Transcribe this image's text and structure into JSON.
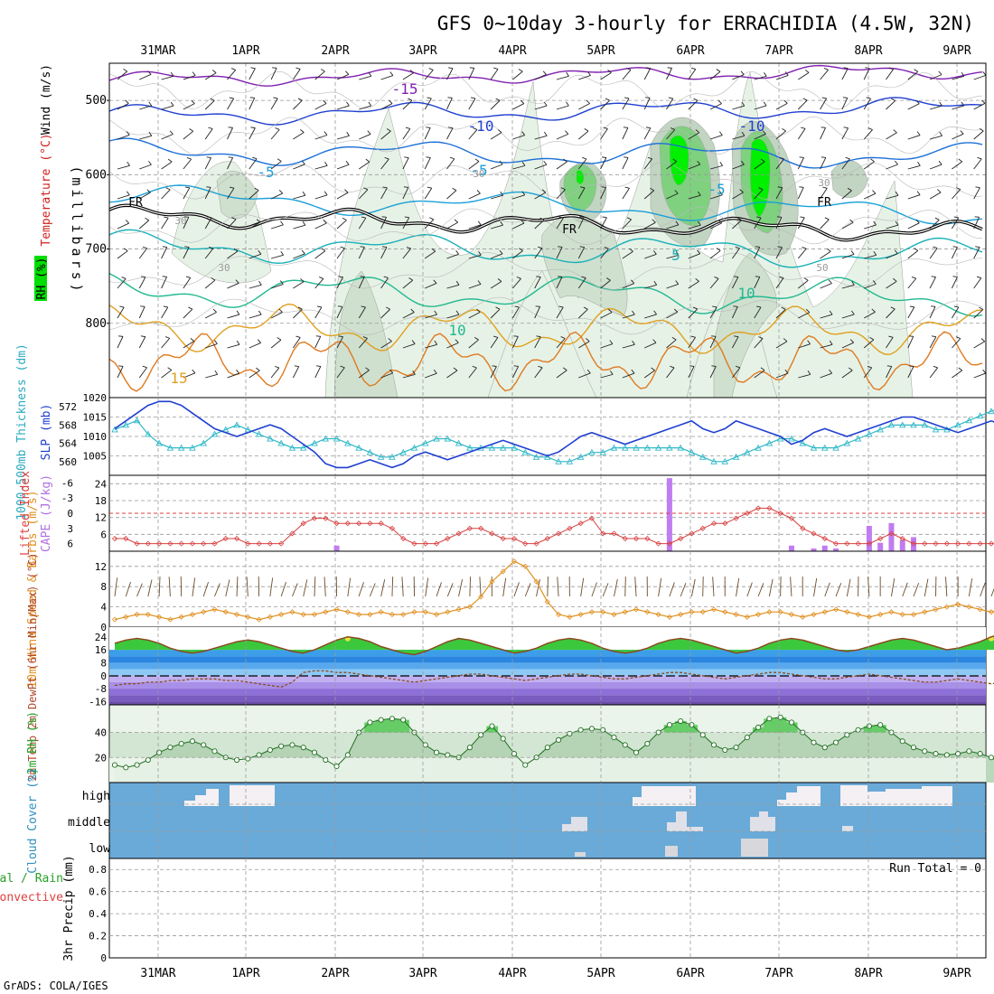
{
  "chart_data": {
    "type": "line",
    "title": "GFS 0~10day 3-hourly for ERRACHIDIA (4.5W, 32N)",
    "credit": "GrADS: COLA/IGES",
    "dates": [
      "31MAR",
      "1APR",
      "2APR",
      "3APR",
      "4APR",
      "5APR",
      "6APR",
      "7APR",
      "8APR",
      "9APR"
    ],
    "upper_air": {
      "ylabel": "(millibars)",
      "legend": [
        "Wind (m/s)",
        "Temperature (°C)",
        "RH (%)"
      ],
      "ylim": [
        900,
        450
      ],
      "yticks": [
        500,
        600,
        700,
        800
      ],
      "freezing_label": "FR",
      "temp_labels": [
        "-15",
        "-10",
        "-10",
        "-5",
        "-5",
        "-5",
        "5",
        "10",
        "10",
        "15"
      ],
      "rh_labels": [
        "30",
        "30",
        "30",
        "30",
        "50"
      ]
    },
    "slp_thickness": {
      "ylabel_left": "1000-500mb Thickness (dm)",
      "ylabel_right": "SLP (mb)",
      "thickness_ticks": [
        "572",
        "568",
        "564",
        "560"
      ],
      "slp_ticks": [
        "1020",
        "1015",
        "1010",
        "1005"
      ],
      "slp": [
        1012,
        1014,
        1016,
        1018,
        1019,
        1019,
        1018,
        1016,
        1014,
        1012,
        1011,
        1010,
        1011,
        1012,
        1013,
        1012,
        1010,
        1008,
        1006,
        1003,
        1002,
        1002,
        1003,
        1004,
        1003,
        1002,
        1003,
        1005,
        1006,
        1005,
        1004,
        1005,
        1006,
        1007,
        1008,
        1009,
        1008,
        1007,
        1006,
        1005,
        1006,
        1008,
        1010,
        1011,
        1010,
        1009,
        1008,
        1009,
        1010,
        1011,
        1012,
        1013,
        1014,
        1012,
        1011,
        1012,
        1014,
        1013,
        1012,
        1011,
        1010,
        1008,
        1009,
        1011,
        1012,
        1011,
        1010,
        1011,
        1012,
        1013,
        1014,
        1015,
        1015,
        1014,
        1013,
        1012,
        1011,
        1012,
        1013,
        1014,
        1013,
        1012,
        1012,
        1013
      ],
      "thickness": [
        567,
        568,
        569,
        566,
        564,
        563,
        563,
        563,
        564,
        566,
        567,
        568,
        567,
        566,
        565,
        564,
        563,
        563,
        564,
        565,
        565,
        564,
        563,
        562,
        561,
        561,
        562,
        563,
        564,
        565,
        565,
        564,
        563,
        563,
        563,
        563,
        563,
        562,
        561,
        561,
        560,
        560,
        561,
        562,
        562,
        563,
        563,
        563,
        563,
        563,
        563,
        563,
        562,
        561,
        560,
        560,
        561,
        562,
        563,
        564,
        565,
        565,
        564,
        563,
        563,
        563,
        564,
        565,
        566,
        567,
        568,
        568,
        568,
        568,
        567,
        567,
        568,
        569,
        570,
        571,
        572,
        572,
        571,
        570
      ]
    },
    "cape_li": {
      "ylabel_left": "Lifted Index",
      "ylabel_right": "CAPE (J/kg)",
      "li_ticks": [
        "-6",
        "-3",
        "0",
        "3",
        "6"
      ],
      "cape_ticks": [
        "24",
        "18",
        "12",
        "6"
      ],
      "cape": [
        0,
        0,
        0,
        0,
        0,
        0,
        0,
        0,
        0,
        0,
        0,
        0,
        0,
        0,
        0,
        0,
        0,
        0,
        0,
        0,
        2,
        0,
        0,
        0,
        0,
        0,
        0,
        0,
        0,
        0,
        0,
        0,
        0,
        0,
        0,
        0,
        0,
        0,
        0,
        0,
        0,
        0,
        0,
        0,
        0,
        0,
        0,
        0,
        0,
        0,
        26,
        0,
        0,
        0,
        0,
        0,
        0,
        0,
        0,
        0,
        0,
        2,
        0,
        1,
        2,
        1,
        0,
        0,
        9,
        3,
        10,
        4,
        5,
        0,
        0,
        0,
        0,
        0,
        0,
        0,
        0,
        0,
        0,
        0
      ],
      "li": [
        5,
        5,
        6,
        6,
        6,
        6,
        6,
        6,
        6,
        6,
        5,
        5,
        6,
        6,
        6,
        6,
        4,
        2,
        1,
        1,
        2,
        2,
        2,
        2,
        2,
        3,
        5,
        6,
        6,
        6,
        5,
        4,
        3,
        3,
        4,
        5,
        5,
        6,
        6,
        5,
        4,
        3,
        2,
        1,
        4,
        4,
        5,
        5,
        5,
        6,
        6,
        5,
        4,
        3,
        2,
        2,
        1,
        0,
        -1,
        -1,
        0,
        1,
        3,
        4,
        5,
        6,
        6,
        6,
        6,
        5,
        4,
        5,
        6,
        6,
        6,
        6,
        6,
        6,
        6,
        6,
        6,
        6,
        6,
        6
      ]
    },
    "wind10m": {
      "ylabel": "10m Wind Speed & Barbs (m/s)",
      "yticks": [
        "12",
        "8",
        "4",
        "0"
      ],
      "values": [
        1.5,
        2,
        2.5,
        2.5,
        2,
        1.5,
        2,
        2.5,
        3,
        3.5,
        3,
        2.5,
        2,
        1.5,
        2,
        2.5,
        3,
        2.5,
        2.5,
        3,
        3.5,
        3,
        2.5,
        2.5,
        3,
        2.5,
        2.5,
        3,
        3,
        2.5,
        3,
        3.5,
        4,
        6,
        9,
        11,
        13,
        12,
        9,
        5,
        2.5,
        2,
        2.5,
        3,
        3,
        2.5,
        3,
        3.5,
        3,
        2.5,
        2,
        2.5,
        3,
        3,
        3.5,
        3,
        2.5,
        2,
        2.5,
        3,
        3,
        2.5,
        2,
        2.5,
        3,
        3.5,
        3,
        2.5,
        2,
        2.5,
        3,
        2.5,
        2.5,
        3,
        3.5,
        4,
        4.5,
        4,
        3.5,
        3,
        3.5,
        4.5,
        6,
        7
      ]
    },
    "temp2m": {
      "ylabel": "2m Temp 2m DewPt (6hr Min/Max) (°C)",
      "yticks": [
        "24",
        "16",
        "8",
        "0",
        "-8",
        "-16"
      ],
      "temp": [
        20,
        22,
        23,
        22,
        20,
        17,
        15,
        14,
        15,
        17,
        19,
        21,
        22,
        21,
        19,
        17,
        15,
        14,
        16,
        19,
        22,
        24,
        23,
        21,
        18,
        16,
        14,
        13,
        15,
        18,
        21,
        23,
        22,
        20,
        18,
        16,
        14,
        15,
        17,
        20,
        22,
        23,
        22,
        20,
        17,
        15,
        14,
        15,
        17,
        20,
        22,
        23,
        22,
        20,
        18,
        16,
        14,
        15,
        17,
        20,
        22,
        23,
        22,
        20,
        18,
        16,
        15,
        16,
        18,
        20,
        22,
        23,
        22,
        20,
        18,
        16,
        17,
        19,
        21,
        24,
        26,
        25,
        22,
        19
      ],
      "dewpt": [
        -6,
        -5,
        -5,
        -4,
        -4,
        -3,
        -3,
        -2,
        -2,
        -2,
        -3,
        -3,
        -4,
        -5,
        -6,
        -7,
        -4,
        2,
        3,
        3,
        2,
        2,
        1,
        0,
        -1,
        -2,
        -3,
        -4,
        -3,
        -2,
        -1,
        0,
        1,
        1,
        0,
        -1,
        -2,
        -3,
        -2,
        -1,
        0,
        1,
        1,
        0,
        -1,
        -2,
        -2,
        -1,
        0,
        1,
        2,
        2,
        1,
        0,
        -1,
        -2,
        -1,
        0,
        1,
        2,
        2,
        1,
        0,
        -1,
        -2,
        -2,
        -1,
        0,
        1,
        0,
        -1,
        -2,
        -3,
        -4,
        -4,
        -3,
        -2,
        -3,
        -4,
        -5,
        -4,
        -3,
        -2,
        -2
      ]
    },
    "rh2m": {
      "ylabel": "2m RH (%)",
      "yticks": [
        "40",
        "20"
      ],
      "values": [
        14,
        12,
        14,
        18,
        24,
        28,
        31,
        33,
        30,
        25,
        20,
        18,
        19,
        22,
        26,
        29,
        30,
        28,
        24,
        18,
        13,
        22,
        40,
        48,
        50,
        51,
        50,
        40,
        30,
        24,
        22,
        20,
        28,
        38,
        45,
        35,
        23,
        14,
        20,
        28,
        34,
        39,
        42,
        43,
        42,
        36,
        30,
        24,
        31,
        40,
        46,
        49,
        46,
        38,
        30,
        26,
        28,
        36,
        44,
        51,
        52,
        48,
        40,
        32,
        28,
        32,
        38,
        42,
        45,
        46,
        40,
        33,
        28,
        25,
        23,
        22,
        23,
        25,
        23,
        20,
        15,
        12,
        12,
        14
      ]
    },
    "cloud": {
      "ylabel": "Cloud Cover (%)",
      "levels": [
        "high",
        "middle",
        "low"
      ]
    },
    "precip": {
      "ylabel": "3hr Precip (mm)",
      "legend": [
        "Total / Rain",
        "Convective"
      ],
      "yticks": [
        "0.8",
        "0.6",
        "0.4",
        "0.2",
        "0"
      ],
      "run_total_label": "Run Total = 0"
    }
  }
}
